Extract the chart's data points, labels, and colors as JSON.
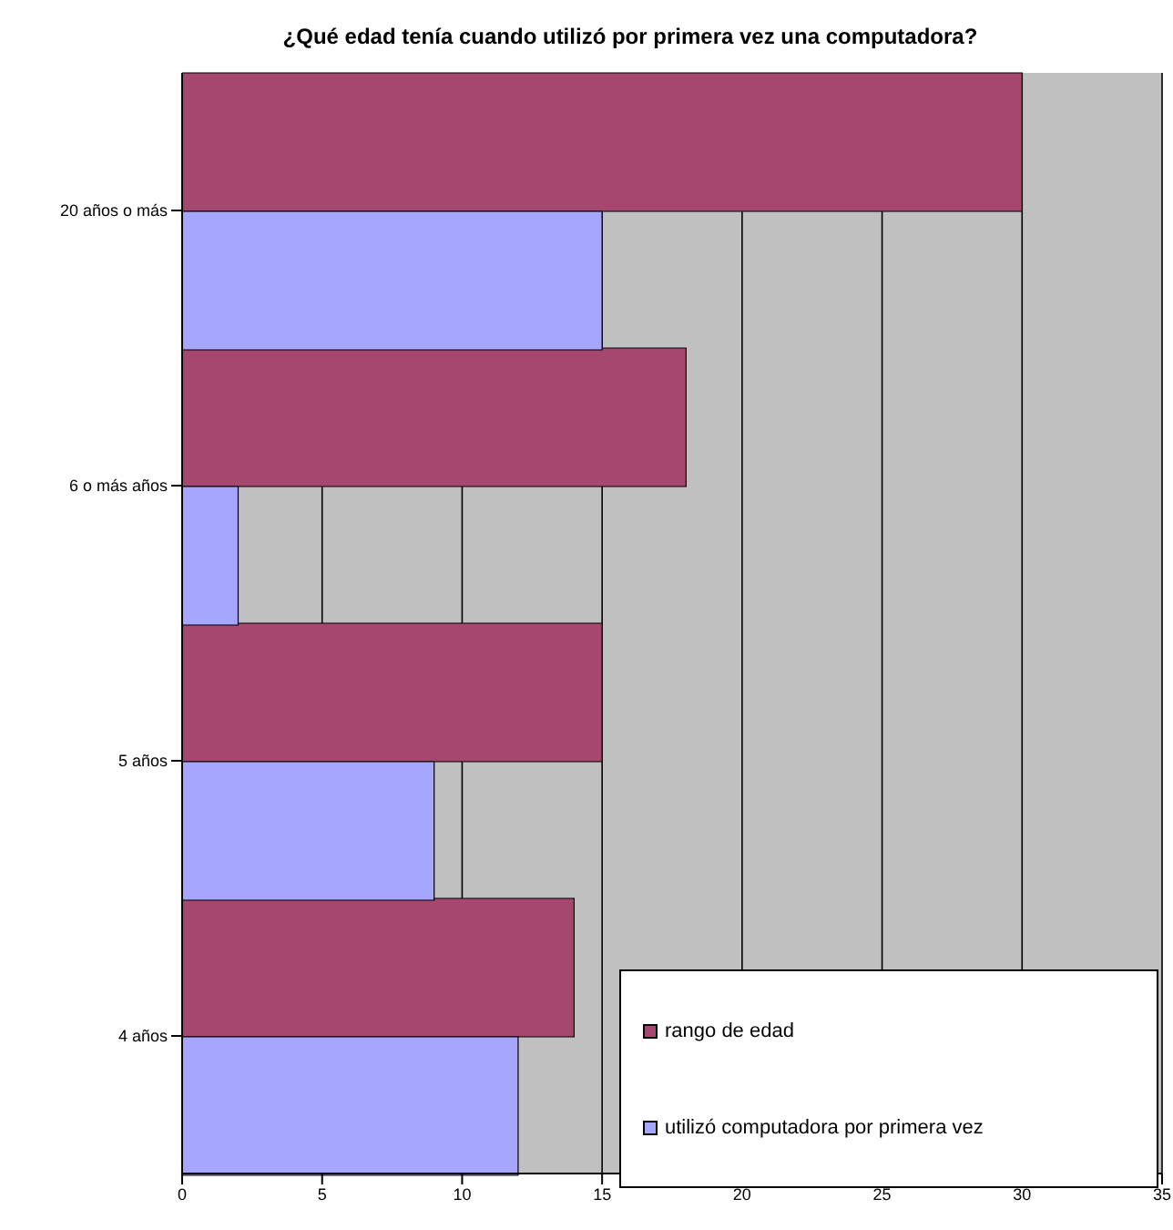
{
  "chart_data": {
    "type": "bar",
    "orientation": "horizontal",
    "title": "¿Qué edad tenía cuando utilizó por primera vez una computadora?",
    "categories": [
      "20 años o más",
      "6 o más años",
      "5 años",
      "4 años"
    ],
    "series": [
      {
        "name": "rango de edad",
        "color": "#a5476f",
        "values": [
          30,
          18,
          15,
          14
        ]
      },
      {
        "name": "utilizó computadora por primera vez",
        "color": "#a6a6ff",
        "values": [
          15,
          2,
          9,
          12
        ]
      }
    ],
    "xlim": [
      0,
      35
    ],
    "xticks": [
      0,
      5,
      10,
      15,
      20,
      25,
      30,
      35
    ],
    "grid": "x",
    "legend": "bottom right"
  }
}
